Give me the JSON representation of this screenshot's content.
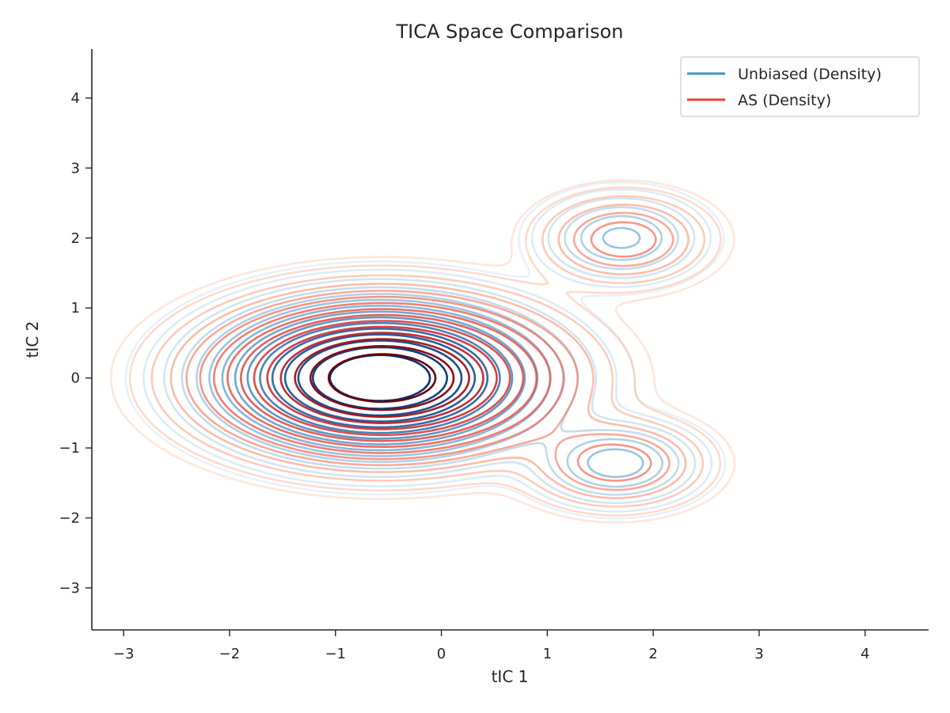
{
  "chart_data": {
    "type": "contour",
    "title": "TICA Space Comparison",
    "xlabel": "tIC 1",
    "ylabel": "tIC 2",
    "xlim": [
      -3.3,
      4.6
    ],
    "ylim": [
      -3.6,
      4.7
    ],
    "xticks": [
      -3,
      -2,
      -1,
      0,
      1,
      2,
      3,
      4
    ],
    "yticks": [
      -3,
      -2,
      -1,
      0,
      1,
      2,
      3,
      4
    ],
    "xtick_labels": [
      "−3",
      "−2",
      "−1",
      "0",
      "1",
      "2",
      "3",
      "4"
    ],
    "ytick_labels": [
      "−3",
      "−2",
      "−1",
      "0",
      "1",
      "2",
      "3",
      "4"
    ],
    "grid": false,
    "legend_position": "top-right",
    "series": [
      {
        "name": "Unbiased (Density)",
        "legend_color": "#4292c6",
        "colormap": "Blues",
        "modes": [
          {
            "cx": -0.58,
            "cy": 0.0,
            "sx": 0.75,
            "sy": 0.52,
            "w": 1.0
          },
          {
            "cx": 1.7,
            "cy": 2.0,
            "sx": 0.4,
            "sy": 0.33,
            "w": 0.11
          },
          {
            "cx": 1.65,
            "cy": -1.22,
            "sx": 0.42,
            "sy": 0.32,
            "w": 0.12
          }
        ]
      },
      {
        "name": "AS (Density)",
        "legend_color": "#ef3b2c",
        "colormap": "Reds",
        "modes": [
          {
            "cx": -0.56,
            "cy": 0.0,
            "sx": 0.8,
            "sy": 0.54,
            "w": 1.0
          },
          {
            "cx": 1.72,
            "cy": 1.98,
            "sx": 0.42,
            "sy": 0.34,
            "w": 0.13
          },
          {
            "cx": 1.65,
            "cy": -1.22,
            "sx": 0.45,
            "sy": 0.34,
            "w": 0.13
          }
        ]
      }
    ],
    "contour_levels": [
      0.006,
      0.012,
      0.025,
      0.045,
      0.07,
      0.1,
      0.14,
      0.19,
      0.25,
      0.32,
      0.4,
      0.49,
      0.59,
      0.7,
      0.82
    ]
  }
}
